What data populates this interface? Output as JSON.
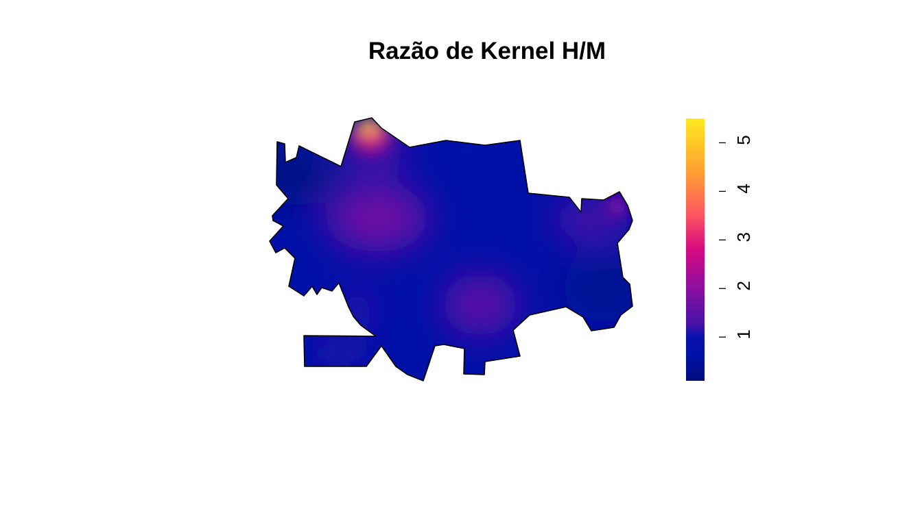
{
  "title": "Razão de Kernel H/M",
  "colorbar": {
    "ticks": [
      {
        "value": 1,
        "label": "1"
      },
      {
        "value": 2,
        "label": "2"
      },
      {
        "value": 3,
        "label": "3"
      },
      {
        "value": 4,
        "label": "4"
      },
      {
        "value": 5,
        "label": "5"
      }
    ],
    "range": [
      0.1,
      5.5
    ],
    "palette": [
      "#000c7d",
      "#0011a8",
      "#4a12a8",
      "#8f0fa0",
      "#d7097f",
      "#ff5a5f",
      "#ffa132",
      "#ffe920"
    ]
  },
  "hotspots": [
    {
      "name": "north",
      "value": 5.4
    },
    {
      "name": "west-center",
      "value": 1.5
    },
    {
      "name": "south-center",
      "value": 1.6
    },
    {
      "name": "east",
      "value": 1.4
    },
    {
      "name": "southwest",
      "value": 0.8
    }
  ],
  "colors": {
    "background": "#0011a8",
    "outline": "#000000"
  }
}
